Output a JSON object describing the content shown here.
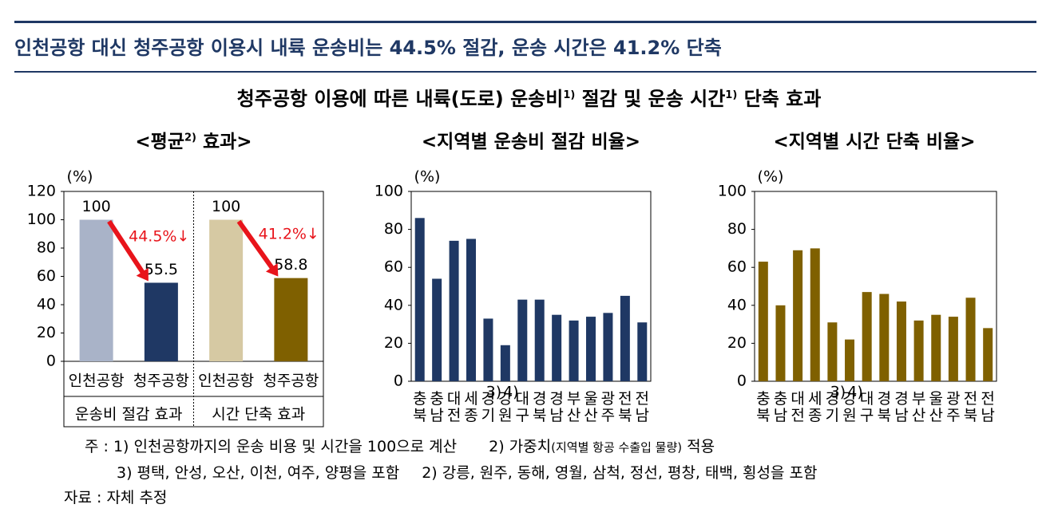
{
  "header": {
    "title": "인천공항 대신 청주공항 이용시 내륙 운송비는 44.5% 절감, 운송 시간은 41.2% 단축"
  },
  "main_title": {
    "text": "청주공항 이용에 따른 내륙(도로) 운송비",
    "sup1": "1)",
    "middle": " 절감 및 운송 시간",
    "sup2": "1)",
    "end": " 단축 효과"
  },
  "chart_data": [
    {
      "type": "grouped_bar",
      "title": "<평균",
      "title_sup": "2)",
      "title_end": " 효과>",
      "y_label": "(%)",
      "categories": [
        "인천공항",
        "청주공항",
        "인천공항",
        "청주공항"
      ],
      "groups": [
        "운송비 절감 효과",
        "시간 단축 효과"
      ],
      "values": [
        100,
        55.5,
        100,
        58.8
      ],
      "colors": [
        "#a9b3c8",
        "#1f3864",
        "#d6c9a3",
        "#7f6000"
      ],
      "annotations": [
        "44.5%↓",
        "41.2%↓"
      ],
      "annotation_color": "#e8141b",
      "ylim": [
        0,
        120
      ],
      "yticks": [
        0,
        20,
        40,
        60,
        80,
        100,
        120
      ]
    },
    {
      "type": "bar",
      "title": "<지역별 운송비 절감 비율>",
      "y_label": "(%)",
      "categories": [
        "충북",
        "충남",
        "대전",
        "세종",
        "경기",
        "강원",
        "대구",
        "경북",
        "경남",
        "부산",
        "울산",
        "광주",
        "전북",
        "전남"
      ],
      "category_notes": [
        {
          "category": "경기",
          "note": "3)"
        },
        {
          "category": "강원",
          "note": "4)"
        }
      ],
      "values": [
        86,
        54,
        74,
        75,
        33,
        19,
        43,
        43,
        35,
        32,
        34,
        36,
        45,
        31
      ],
      "color": "#1f3864",
      "ylim": [
        0,
        100
      ],
      "yticks": [
        0,
        20,
        40,
        60,
        80,
        100
      ]
    },
    {
      "type": "bar",
      "title": "<지역별 시간 단축 비율>",
      "y_label": "(%)",
      "categories": [
        "충북",
        "충남",
        "대전",
        "세종",
        "경기",
        "강원",
        "대구",
        "경북",
        "경남",
        "부산",
        "울산",
        "광주",
        "전북",
        "전남"
      ],
      "category_notes": [
        {
          "category": "경기",
          "note": "3)"
        },
        {
          "category": "강원",
          "note": "4)"
        }
      ],
      "values": [
        63,
        40,
        69,
        70,
        31,
        22,
        47,
        46,
        42,
        32,
        35,
        34,
        44,
        28
      ],
      "color": "#7f6000",
      "ylim": [
        0,
        100
      ],
      "yticks": [
        0,
        20,
        40,
        60,
        80,
        100
      ]
    }
  ],
  "notes": {
    "label": "주 :",
    "n1": "1) 인천공항까지의 운송 비용 및 시간을 100으로 계산",
    "n2": "2) 가중치",
    "n2_small": "(지역별 항공 수출입 물량)",
    "n2_end": " 적용",
    "n3": "3) 평택, 안성, 오산, 이천, 여주, 양평을 포함",
    "n4": "2) 강릉, 원주, 동해, 영월, 삼척, 정선, 평창, 태백, 횡성을 포함",
    "source_label": "자료 :",
    "source": "자체 추정"
  }
}
